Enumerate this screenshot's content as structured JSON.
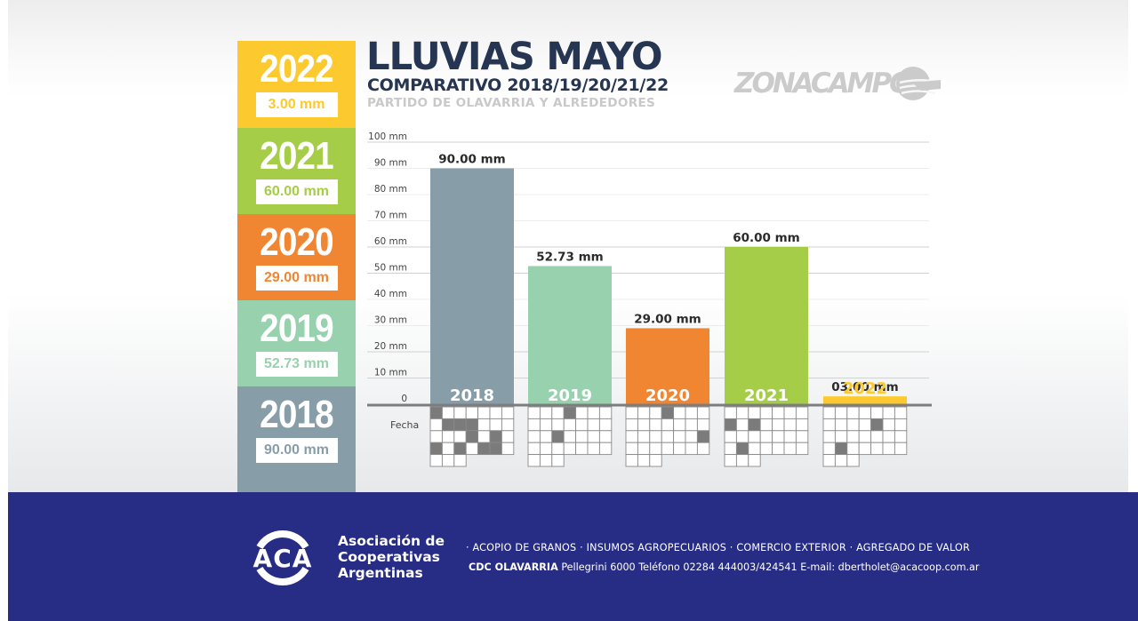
{
  "header": {
    "title": "LLUVIAS MAYO",
    "subtitle": "COMPARATIVO 2018/19/20/21/22",
    "place": "PARTIDO DE OLAVARRIA Y ALREDEDORES",
    "brand_logo": "ZONACAMPO"
  },
  "colors": {
    "y2022": "#fcc92f",
    "y2021": "#a6cd48",
    "y2020": "#f08532",
    "y2019": "#98d1ad",
    "y2018": "#879ea9",
    "navy": "#253552",
    "footer": "#272c85"
  },
  "summary": [
    {
      "year": "2022",
      "value": "3.00 mm",
      "color": "#fcc92f"
    },
    {
      "year": "2021",
      "value": "60.00 mm",
      "color": "#a6cd48"
    },
    {
      "year": "2020",
      "value": "29.00 mm",
      "color": "#f08532"
    },
    {
      "year": "2019",
      "value": "52.73 mm",
      "color": "#98d1ad"
    },
    {
      "year": "2018",
      "value": "90.00 mm",
      "color": "#879ea9"
    }
  ],
  "chart_data": {
    "type": "bar",
    "title": "LLUVIAS MAYO",
    "subtitle": "COMPARATIVO 2018/19/20/21/22 — PARTIDO DE OLAVARRIA Y ALREDEDORES",
    "categories": [
      "2018",
      "2019",
      "2020",
      "2021",
      "2022"
    ],
    "values": [
      90.0,
      52.73,
      29.0,
      60.0,
      3.0
    ],
    "data_labels": [
      "90.00 mm",
      "52.73 mm",
      "29.00 mm",
      "60.00 mm",
      "03.00 mm"
    ],
    "colors": [
      "#879ea9",
      "#98d1ad",
      "#f08532",
      "#a6cd48",
      "#fcc92f"
    ],
    "category_label_colors": [
      "#ffffff",
      "#ffffff",
      "#ffffff",
      "#ffffff",
      "#fcc92f"
    ],
    "xlabel": "",
    "ylabel": "",
    "ylim": [
      0,
      100
    ],
    "yticks": [
      0,
      10,
      20,
      30,
      40,
      50,
      60,
      70,
      80,
      90,
      100
    ],
    "ytick_labels": [
      "0",
      "10 mm",
      "20 mm",
      "30 mm",
      "40 mm",
      "50 mm",
      "60 mm",
      "70 mm",
      "80 mm",
      "90 mm",
      "100 mm"
    ],
    "grid": true,
    "calendar_label": "Fecha",
    "calendar_rain_days": {
      "2018": [
        1,
        9,
        10,
        11,
        18,
        20,
        22,
        24,
        26,
        27
      ],
      "2019": [
        4,
        17
      ],
      "2020": [
        4,
        21
      ],
      "2021": [
        8,
        10,
        23
      ],
      "2022": [
        12,
        23
      ]
    }
  },
  "footer": {
    "logo_text": "ACA",
    "org_name": [
      "Asociación de",
      "Cooperativas",
      "Argentinas"
    ],
    "services": "·  ACOPIO DE GRANOS  ·  INSUMOS AGROPECUARIOS  ·  COMERCIO EXTERIOR  ·  AGREGADO DE VALOR",
    "contact_office": "CDC OLAVARRIA",
    "contact_address": "Pellegrini 6000",
    "contact_phone_label": "Teléfono",
    "contact_phone": "02284 444003/424541",
    "contact_email_label": "E-mail:",
    "contact_email": "dbertholet@acacoop.com.ar"
  }
}
